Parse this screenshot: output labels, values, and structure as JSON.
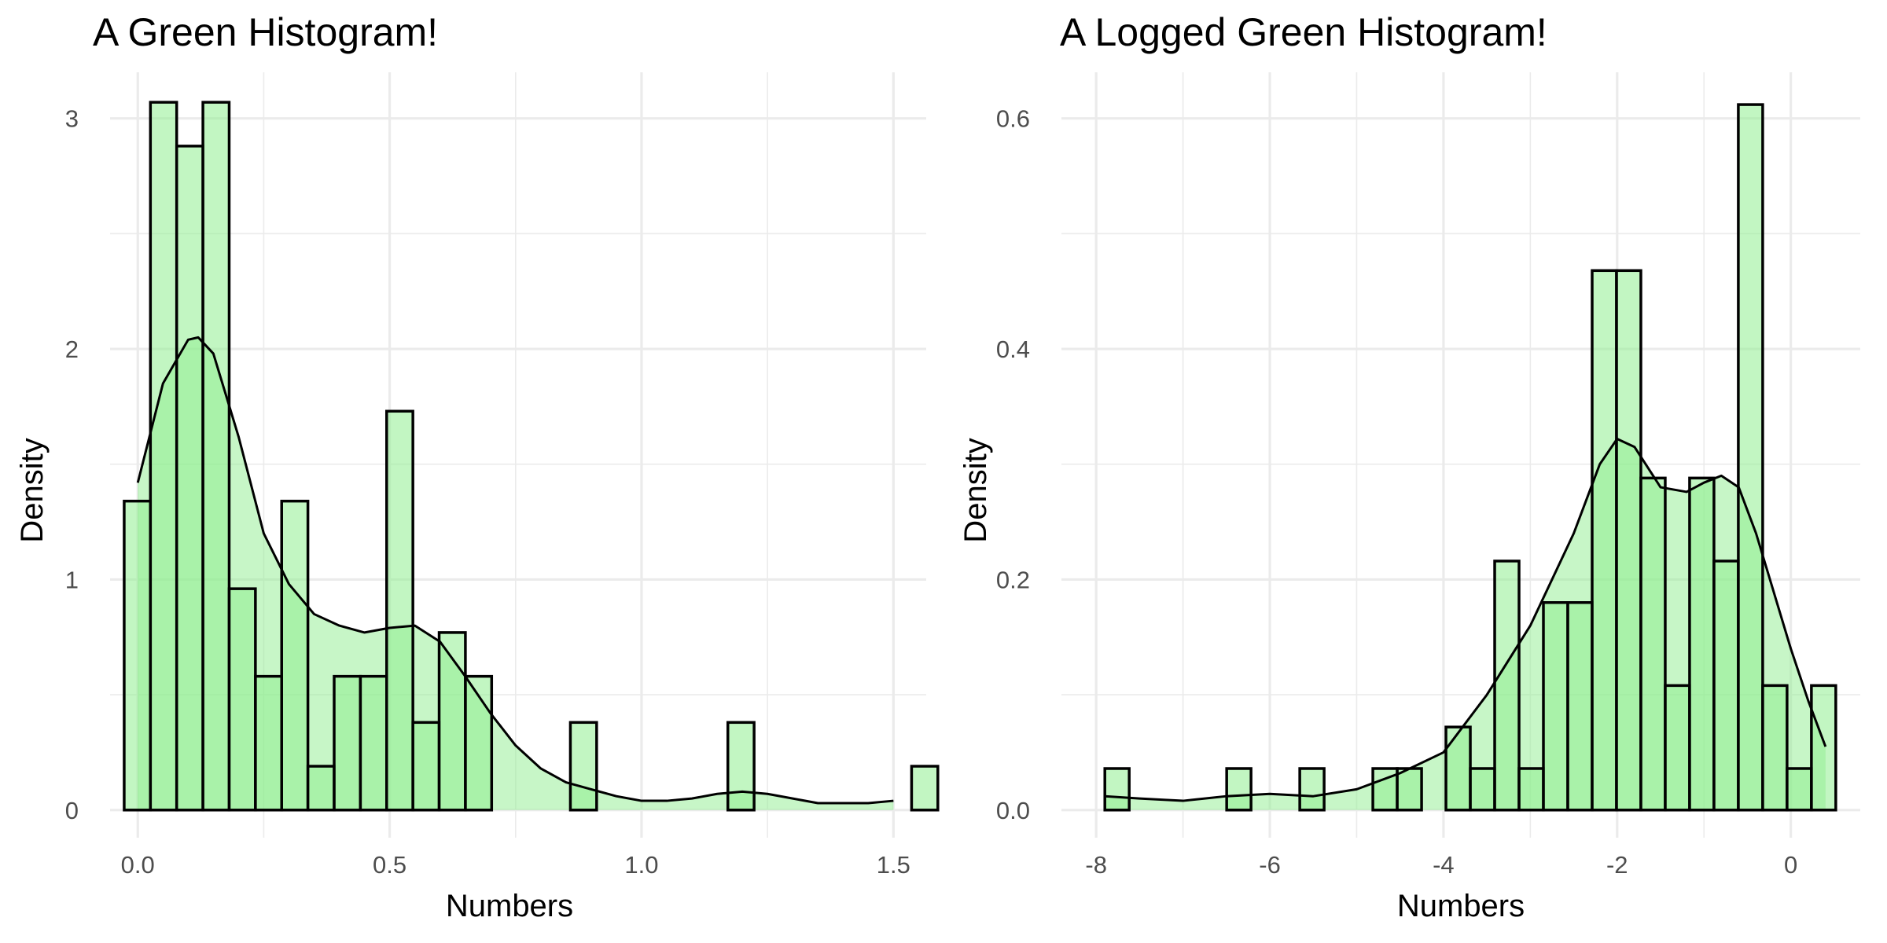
{
  "colors": {
    "bar_fill": "#90ee90",
    "bar_fill_alpha": 0.55,
    "bar_outline": "#000000",
    "density_fill": "#90ee90",
    "density_fill_alpha": 0.5,
    "density_line": "#000000",
    "grid": "#ebebeb",
    "tick_text": "#4d4d4d"
  },
  "chart_data": [
    {
      "type": "histogram",
      "title": "A Green Histogram!",
      "xlabel": "Numbers",
      "ylabel": "Density",
      "xlim": [
        -0.055,
        1.565
      ],
      "ylim": [
        -0.12,
        3.2
      ],
      "x_ticks": [
        {
          "value": 0,
          "label": "0.0"
        },
        {
          "value": 0.5,
          "label": "0.5"
        },
        {
          "value": 1.0,
          "label": "1.0"
        },
        {
          "value": 1.5,
          "label": "1.5"
        }
      ],
      "x_minor_ticks": [
        0.25,
        0.75,
        1.25
      ],
      "y_ticks": [
        {
          "value": 0,
          "label": "0"
        },
        {
          "value": 1,
          "label": "1"
        },
        {
          "value": 2,
          "label": "2"
        },
        {
          "value": 3,
          "label": "3"
        }
      ],
      "y_minor_ticks": [
        0.5,
        1.5,
        2.5
      ],
      "grid": true,
      "bins": {
        "start": -0.027,
        "width": 0.0521,
        "values": [
          1.34,
          3.07,
          2.88,
          3.07,
          0.96,
          0.58,
          1.34,
          0.19,
          0.58,
          0.58,
          1.73,
          0.38,
          0.77,
          0.58,
          0,
          0,
          0,
          0.38,
          0,
          0,
          0,
          0,
          0,
          0.38,
          0,
          0,
          0,
          0,
          0,
          0,
          0.19
        ]
      },
      "density": {
        "x": [
          0.0,
          0.05,
          0.1,
          0.12,
          0.15,
          0.2,
          0.25,
          0.3,
          0.35,
          0.4,
          0.45,
          0.5,
          0.55,
          0.6,
          0.65,
          0.7,
          0.75,
          0.8,
          0.85,
          0.9,
          0.95,
          1.0,
          1.05,
          1.1,
          1.15,
          1.2,
          1.25,
          1.3,
          1.35,
          1.4,
          1.45,
          1.5
        ],
        "y": [
          1.42,
          1.85,
          2.04,
          2.05,
          1.98,
          1.62,
          1.2,
          0.98,
          0.85,
          0.8,
          0.77,
          0.79,
          0.8,
          0.73,
          0.58,
          0.42,
          0.28,
          0.18,
          0.12,
          0.09,
          0.06,
          0.04,
          0.04,
          0.05,
          0.07,
          0.08,
          0.07,
          0.05,
          0.03,
          0.03,
          0.03,
          0.04
        ]
      }
    },
    {
      "type": "histogram",
      "title": "A Logged Green Histogram!",
      "xlabel": "Numbers",
      "ylabel": "Density",
      "xlim": [
        -8.4,
        0.8
      ],
      "ylim": [
        -0.024,
        0.64
      ],
      "x_ticks": [
        {
          "value": -8,
          "label": "-8"
        },
        {
          "value": -6,
          "label": "-6"
        },
        {
          "value": -4,
          "label": "-4"
        },
        {
          "value": -2,
          "label": "-2"
        },
        {
          "value": 0,
          "label": "0"
        }
      ],
      "x_minor_ticks": [
        -7,
        -5,
        -3,
        -1
      ],
      "y_ticks": [
        {
          "value": 0.0,
          "label": "0.0"
        },
        {
          "value": 0.2,
          "label": "0.2"
        },
        {
          "value": 0.4,
          "label": "0.4"
        },
        {
          "value": 0.6,
          "label": "0.6"
        }
      ],
      "y_minor_ticks": [
        0.1,
        0.3,
        0.5
      ],
      "grid": true,
      "bins": {
        "start": -7.9,
        "width": 0.2806,
        "values": [
          0.036,
          0,
          0,
          0,
          0,
          0.036,
          0,
          0,
          0.036,
          0,
          0,
          0.036,
          0.036,
          0,
          0.072,
          0.036,
          0.216,
          0.036,
          0.18,
          0.18,
          0.468,
          0.468,
          0.288,
          0.108,
          0.288,
          0.216,
          0.612,
          0.108,
          0.036,
          0.108
        ]
      },
      "density": {
        "x": [
          -7.9,
          -7.5,
          -7.0,
          -6.5,
          -6.0,
          -5.5,
          -5.0,
          -4.5,
          -4.0,
          -3.5,
          -3.0,
          -2.5,
          -2.2,
          -2.0,
          -1.8,
          -1.5,
          -1.2,
          -1.0,
          -0.8,
          -0.6,
          -0.4,
          -0.2,
          0.0,
          0.2,
          0.4
        ],
        "y": [
          0.012,
          0.01,
          0.008,
          0.012,
          0.014,
          0.012,
          0.018,
          0.032,
          0.05,
          0.1,
          0.16,
          0.24,
          0.3,
          0.322,
          0.315,
          0.28,
          0.276,
          0.284,
          0.29,
          0.28,
          0.24,
          0.19,
          0.14,
          0.095,
          0.055
        ]
      }
    }
  ]
}
